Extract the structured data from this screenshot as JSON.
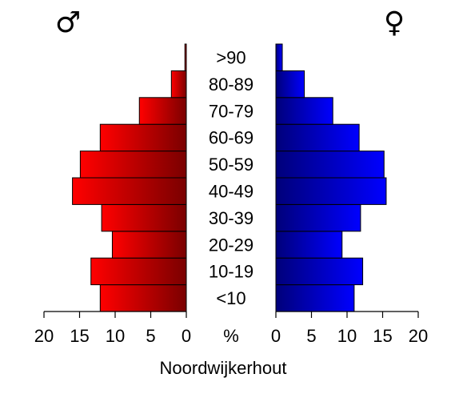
{
  "chart_data": {
    "type": "pyramid",
    "title": "Noordwijkerhout",
    "unit_label": "%",
    "categories": [
      "<10",
      "10-19",
      "20-29",
      "30-39",
      "40-49",
      "50-59",
      "60-69",
      "70-79",
      "80-89",
      ">90"
    ],
    "series": [
      {
        "name": "♂",
        "color": "#ff0000",
        "values": [
          12.1,
          13.4,
          10.4,
          11.9,
          16.0,
          14.9,
          12.1,
          6.6,
          2.1,
          0.2
        ]
      },
      {
        "name": "♀",
        "color": "#0000ff",
        "values": [
          11.0,
          12.2,
          9.3,
          11.9,
          15.5,
          15.2,
          11.7,
          8.0,
          4.0,
          0.9
        ]
      }
    ],
    "xlim": [
      0,
      20
    ],
    "xticks": [
      0,
      5,
      10,
      15,
      20
    ]
  }
}
